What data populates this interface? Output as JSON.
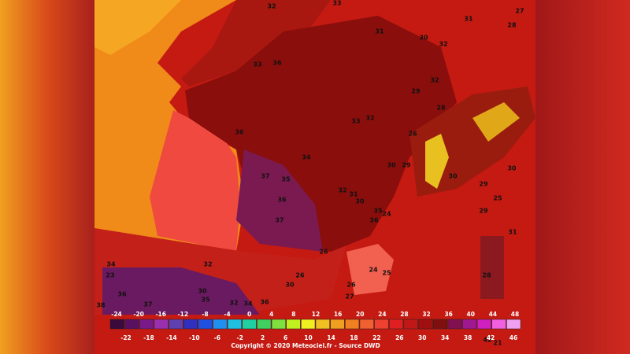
{
  "map": {
    "temperature_labels": [
      32,
      33,
      31,
      27,
      28,
      31,
      30,
      32,
      36,
      33,
      32,
      29,
      28,
      32,
      33,
      36,
      26,
      34,
      30,
      29,
      30,
      30,
      37,
      35,
      32,
      31,
      30,
      36,
      29,
      25,
      35,
      24,
      36,
      29,
      37,
      26,
      31,
      34,
      32,
      24,
      25,
      23,
      26,
      26,
      30,
      27,
      30,
      36,
      38,
      37,
      35,
      32,
      34,
      36,
      28,
      42,
      21
    ],
    "scale_top_labels": [
      -24,
      -20,
      -16,
      -12,
      -8,
      -4,
      0,
      4,
      8,
      12,
      16,
      20,
      24,
      28,
      32,
      36,
      40,
      44,
      48
    ],
    "scale_bottom_labels": [
      -22,
      -18,
      -14,
      -10,
      -6,
      -2,
      2,
      6,
      10,
      14,
      18,
      22,
      26,
      30,
      34,
      38,
      42,
      46
    ],
    "copyright": "Copyright © 2020 Meteociel.fr - Source DWD"
  }
}
